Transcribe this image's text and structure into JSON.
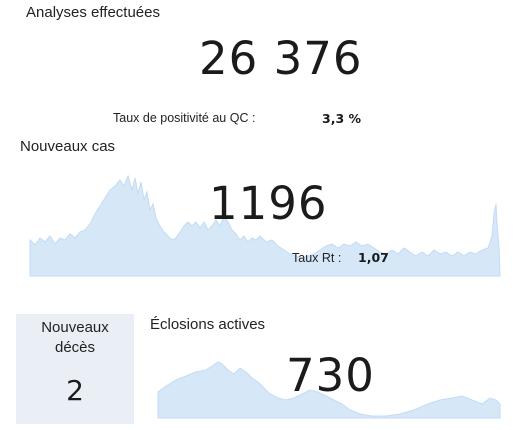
{
  "analyses": {
    "title": "Analyses effectuées",
    "value": "26 376",
    "positivity_label": "Taux de positivité au QC :",
    "positivity_value": "3,3 %"
  },
  "nouveaux_cas": {
    "title": "Nouveaux cas",
    "value": "1196",
    "rt_label": "Taux Rt :",
    "rt_value": "1,07"
  },
  "deces": {
    "title_line1": "Nouveaux",
    "title_line2": "décès",
    "value": "2"
  },
  "eclosions": {
    "title": "Éclosions actives",
    "value": "730"
  },
  "colors": {
    "area_fill": "#d6e7f8",
    "panel_bg": "#eaeef5"
  }
}
